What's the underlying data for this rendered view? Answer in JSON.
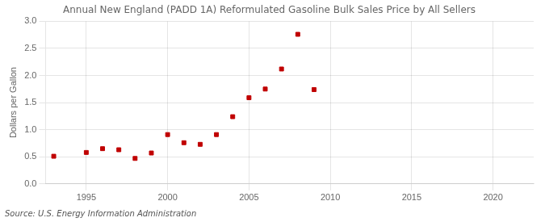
{
  "chart_data": {
    "type": "scatter",
    "title": "Annual New England (PADD 1A) Reformulated Gasoline Bulk Sales Price by All Sellers",
    "ylabel": "Dollars per Gallon",
    "annotations": [
      "Source: U.S. Energy Information Administration"
    ],
    "x": [
      1993,
      1995,
      1996,
      1997,
      1998,
      1999,
      2000,
      2001,
      2002,
      2003,
      2004,
      2005,
      2006,
      2007,
      2008,
      2009
    ],
    "values": [
      0.51,
      0.58,
      0.65,
      0.63,
      0.47,
      0.57,
      0.91,
      0.76,
      0.73,
      0.91,
      1.24,
      1.59,
      1.75,
      2.12,
      2.76,
      1.74
    ],
    "color": "#c00000",
    "marker": "square",
    "xlim": [
      1992.5,
      2022.5
    ],
    "xticks": [
      1995,
      2000,
      2005,
      2010,
      2015,
      2020
    ],
    "ylim": [
      0.0,
      3.0
    ],
    "yticks": [
      {
        "value": 0,
        "label": "0.0"
      },
      0.5,
      {
        "value": 1,
        "label": "1.0"
      },
      1.5,
      {
        "value": 2,
        "label": "2.0"
      },
      2.5,
      {
        "value": 3,
        "label": "3.0"
      }
    ],
    "grid": true
  }
}
